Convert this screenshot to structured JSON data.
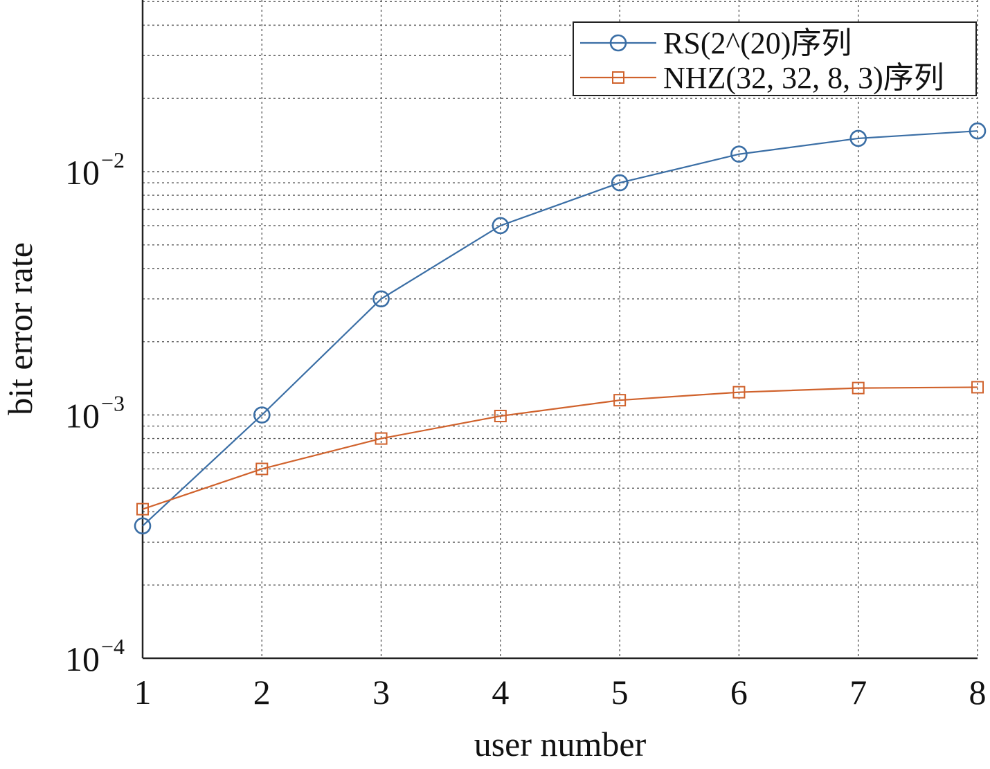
{
  "chart_data": {
    "type": "line",
    "xlabel": "user number",
    "ylabel": "bit error rate",
    "xlim": [
      1,
      8
    ],
    "ylim": [
      0.0001,
      0.05
    ],
    "yscale": "log",
    "grid": true,
    "legend_position": "top-right",
    "x": [
      1,
      2,
      3,
      4,
      5,
      6,
      7,
      8
    ],
    "x_tick_labels": [
      "1",
      "2",
      "3",
      "4",
      "5",
      "6",
      "7",
      "8"
    ],
    "y_tick_labels": [
      {
        "value": 0.0001,
        "base": "10",
        "exp": "−4"
      },
      {
        "value": 0.001,
        "base": "10",
        "exp": "−3"
      },
      {
        "value": 0.01,
        "base": "10",
        "exp": "−2"
      }
    ],
    "series": [
      {
        "name": "RS(2^(20)序列",
        "color": "#3a6ea5",
        "marker": "circle",
        "values": [
          0.00035,
          0.001,
          0.003,
          0.006,
          0.009,
          0.0118,
          0.0137,
          0.0147
        ]
      },
      {
        "name": "NHZ(32, 32, 8, 3)序列",
        "color": "#d0622c",
        "marker": "square",
        "values": [
          0.00041,
          0.0006,
          0.0008,
          0.00099,
          0.00115,
          0.00124,
          0.00129,
          0.0013
        ]
      }
    ]
  }
}
